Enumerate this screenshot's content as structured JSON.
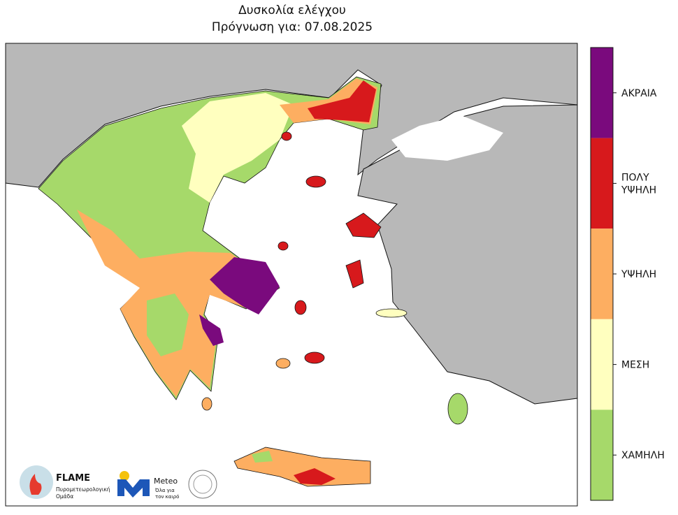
{
  "title": "Δυσκολία ελέγχου",
  "subtitle": "Πρόγνωση για: 07.08.2025",
  "legend": {
    "classes": [
      {
        "lines": [
          "ΑΚΡΑΙΑ"
        ],
        "color": "#7a0a7d"
      },
      {
        "lines": [
          "ΠΟΛΥ",
          "ΥΨΗΛΗ"
        ],
        "color": "#d7191c"
      },
      {
        "lines": [
          "ΥΨΗΛΗ"
        ],
        "color": "#fdae61"
      },
      {
        "lines": [
          "ΜΕΣΗ"
        ],
        "color": "#ffffbf"
      },
      {
        "lines": [
          "ΧΑΜΗΛΗ"
        ],
        "color": "#a6d96a"
      }
    ]
  },
  "logos": {
    "flame": {
      "name": "FLAME",
      "lines": [
        "Πυρομετεωρολογική",
        "Ομάδα"
      ]
    },
    "meteo": {
      "name": "Meteo",
      "lines": [
        "Όλα για",
        "τον καιρό"
      ]
    }
  }
}
